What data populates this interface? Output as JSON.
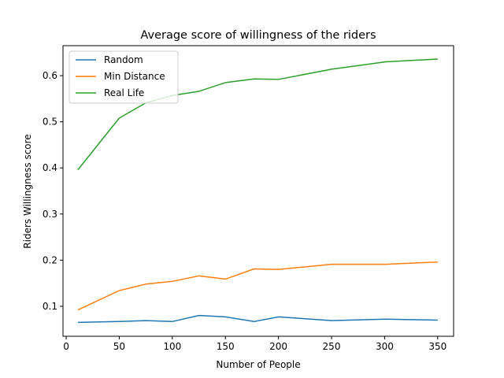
{
  "chart_data": {
    "type": "line",
    "title": "Average score of willingness of the riders",
    "xlabel": "Number of People",
    "ylabel": "Riders Willingness score",
    "xlim": [
      -3,
      365
    ],
    "ylim": [
      0.035,
      0.665
    ],
    "xticks": [
      0,
      50,
      100,
      150,
      200,
      250,
      300,
      350
    ],
    "xtick_labels": [
      "0",
      "50",
      "100",
      "150",
      "200",
      "250",
      "300",
      "350"
    ],
    "yticks": [
      0.1,
      0.2,
      0.3,
      0.4,
      0.5,
      0.6
    ],
    "ytick_labels": [
      "0.1",
      "0.2",
      "0.3",
      "0.4",
      "0.5",
      "0.6"
    ],
    "grid": false,
    "legend_position": "top-left",
    "x": [
      11,
      50,
      75,
      100,
      125,
      150,
      177,
      200,
      250,
      301,
      350
    ],
    "series": [
      {
        "name": "Random",
        "color": "#1f77b4",
        "values": [
          0.065,
          0.067,
          0.069,
          0.067,
          0.08,
          0.077,
          0.067,
          0.077,
          0.069,
          0.072,
          0.07
        ]
      },
      {
        "name": "Min Distance",
        "color": "#ff7f0e",
        "values": [
          0.092,
          0.134,
          0.148,
          0.154,
          0.166,
          0.159,
          0.181,
          0.18,
          0.191,
          0.191,
          0.196
        ]
      },
      {
        "name": "Real Life",
        "color": "#2ca02c",
        "values": [
          0.396,
          0.508,
          0.541,
          0.557,
          0.566,
          0.585,
          0.593,
          0.592,
          0.614,
          0.63,
          0.636
        ]
      }
    ]
  }
}
